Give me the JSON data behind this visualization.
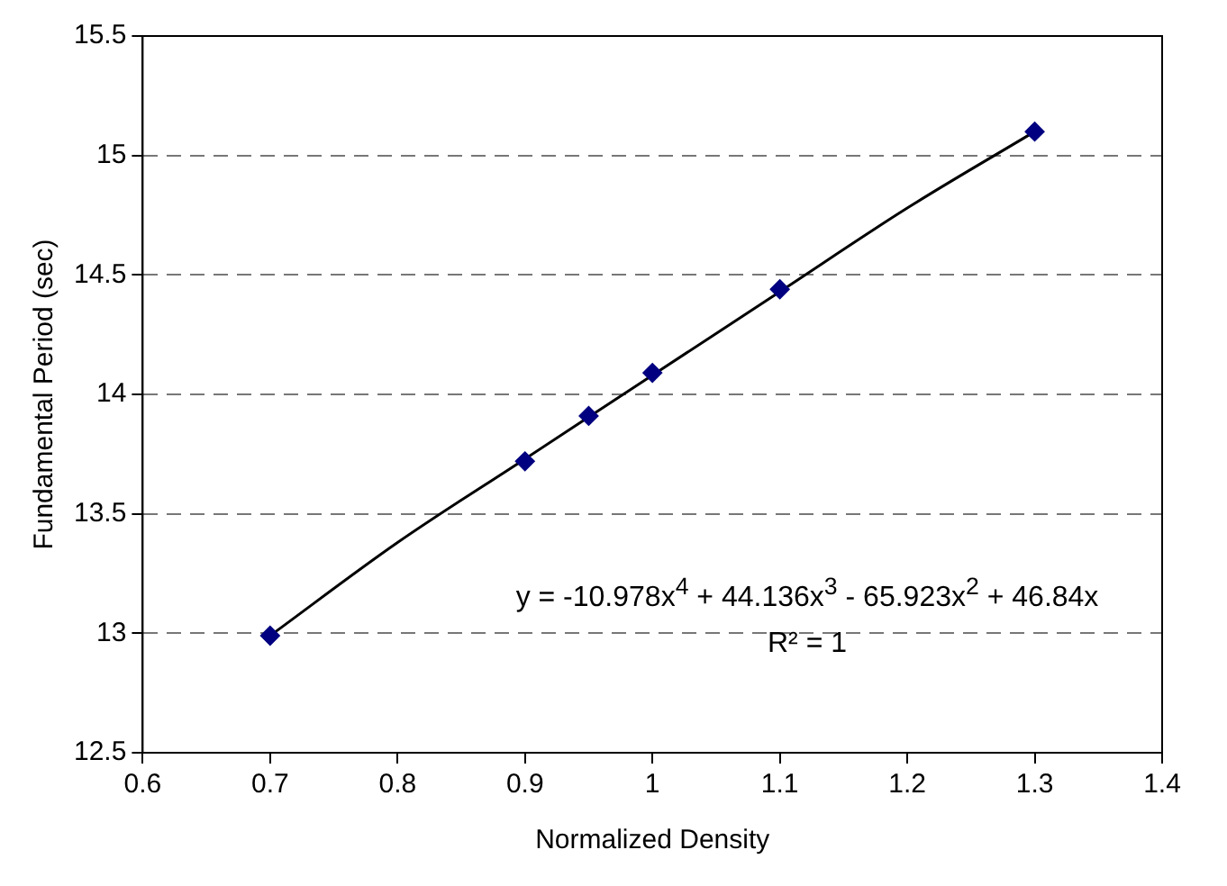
{
  "chart_data": {
    "type": "scatter",
    "xlabel": "Normalized Density",
    "ylabel": "Fundamental Period (sec)",
    "xlim": [
      0.6,
      1.4
    ],
    "xticks": [
      0.6,
      0.7,
      0.8,
      0.9,
      1,
      1.1,
      1.2,
      1.3,
      1.4
    ],
    "ylim": [
      12.5,
      15.5
    ],
    "yticks": [
      12.5,
      13,
      13.5,
      14,
      14.5,
      15,
      15.5
    ],
    "grid": "y",
    "series": [
      {
        "marker": "diamond",
        "color": "#000080",
        "x": [
          0.7,
          0.9,
          0.95,
          1.0,
          1.1,
          1.3
        ],
        "values": [
          12.99,
          13.72,
          13.91,
          14.09,
          14.44,
          15.1
        ]
      },
      {
        "type": "line",
        "marker": "none",
        "color": "#000000",
        "x": [
          0.7,
          0.8,
          0.9,
          1.0,
          1.1,
          1.2,
          1.3
        ],
        "values": [
          12.99,
          13.38,
          13.73,
          14.08,
          14.43,
          14.78,
          15.1
        ]
      }
    ],
    "annotations": [
      "y = -10.978x$^{4}$ + 44.136x$^{3}$ - 65.923x$^{2}$ + 46.84x",
      "R² = 1"
    ]
  }
}
